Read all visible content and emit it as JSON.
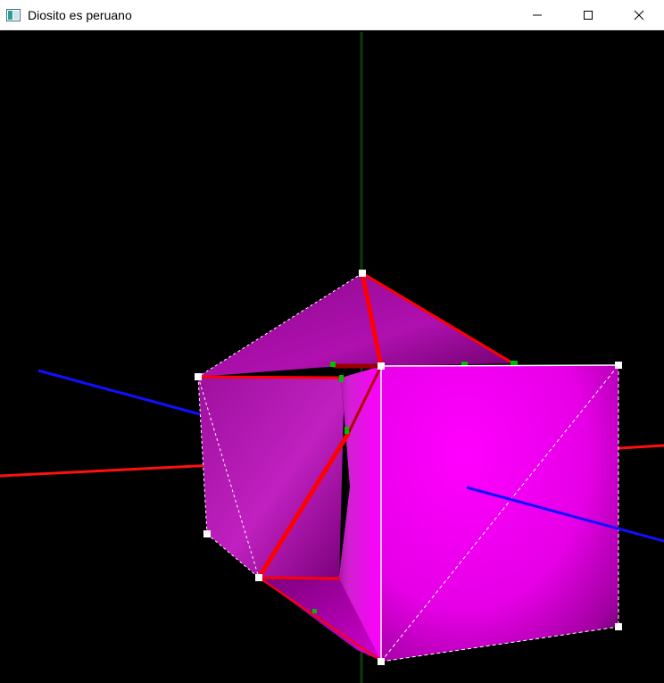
{
  "window": {
    "title": "Diosito es peruano",
    "icon": "app-window-icon",
    "controls": [
      {
        "name": "minimize-button",
        "icon": "minimize-icon"
      },
      {
        "name": "maximize-button",
        "icon": "maximize-icon"
      },
      {
        "name": "close-button",
        "icon": "close-icon"
      }
    ]
  },
  "viewport": {
    "background": "#000000",
    "scene": "3d-polyhedron",
    "colors": {
      "face": "#ff00ff",
      "face_dark": "#7a007a",
      "edge_highlight": "#ff0000",
      "axis_x": "#ff0000",
      "axis_y": "#004000",
      "axis_z": "#0000ff",
      "vertex_marker": "#ffffff",
      "control_marker": "#00aa00"
    }
  }
}
